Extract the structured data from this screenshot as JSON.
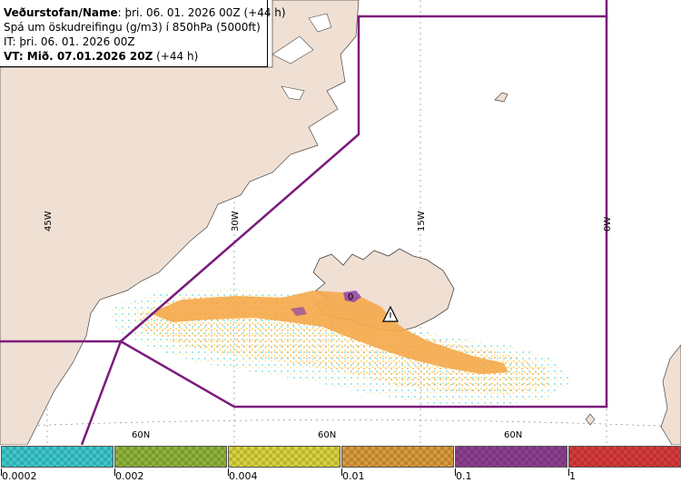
{
  "header": {
    "line1_bold": "Veðurstofan/Name",
    "line1_rest": ": þri. 06. 01. 2026 00Z (+44 h)",
    "line2": "Spá um öskudreifingu (g/m3) í 850hPa (5000ft)",
    "line3": "IT: þri. 06. 01. 2026 00Z",
    "line4_bold": "VT: Mið. 07.01.2026 20Z",
    "line4_rest": " (+44 h)"
  },
  "map": {
    "meridian_labels": [
      "45W",
      "30W",
      "15W",
      "0W"
    ],
    "parallel_labels": [
      "60N",
      "60N",
      "60N"
    ],
    "volcano_marker_icon": "volcano-triangle-icon",
    "zero_label": "0",
    "colors": {
      "land": "#f0e0d4",
      "sea": "#ffffff",
      "boundary": "#7b1a7b",
      "plume_main": "#f5a94a",
      "plume_light": "#fbe58a",
      "plume_faint": "#8fe3ea",
      "plume_purple": "#8e44a8"
    }
  },
  "legend": {
    "bins": [
      {
        "color": "#3cc8cc",
        "label": "0.0002"
      },
      {
        "color": "#8fb43a",
        "label": "0.002"
      },
      {
        "color": "#d7d23c",
        "label": "0.004"
      },
      {
        "color": "#d99a3c",
        "label": "0.01"
      },
      {
        "color": "#8e3f90",
        "label": "0.1"
      },
      {
        "color": "#d83a3a",
        "label": "1"
      }
    ]
  }
}
